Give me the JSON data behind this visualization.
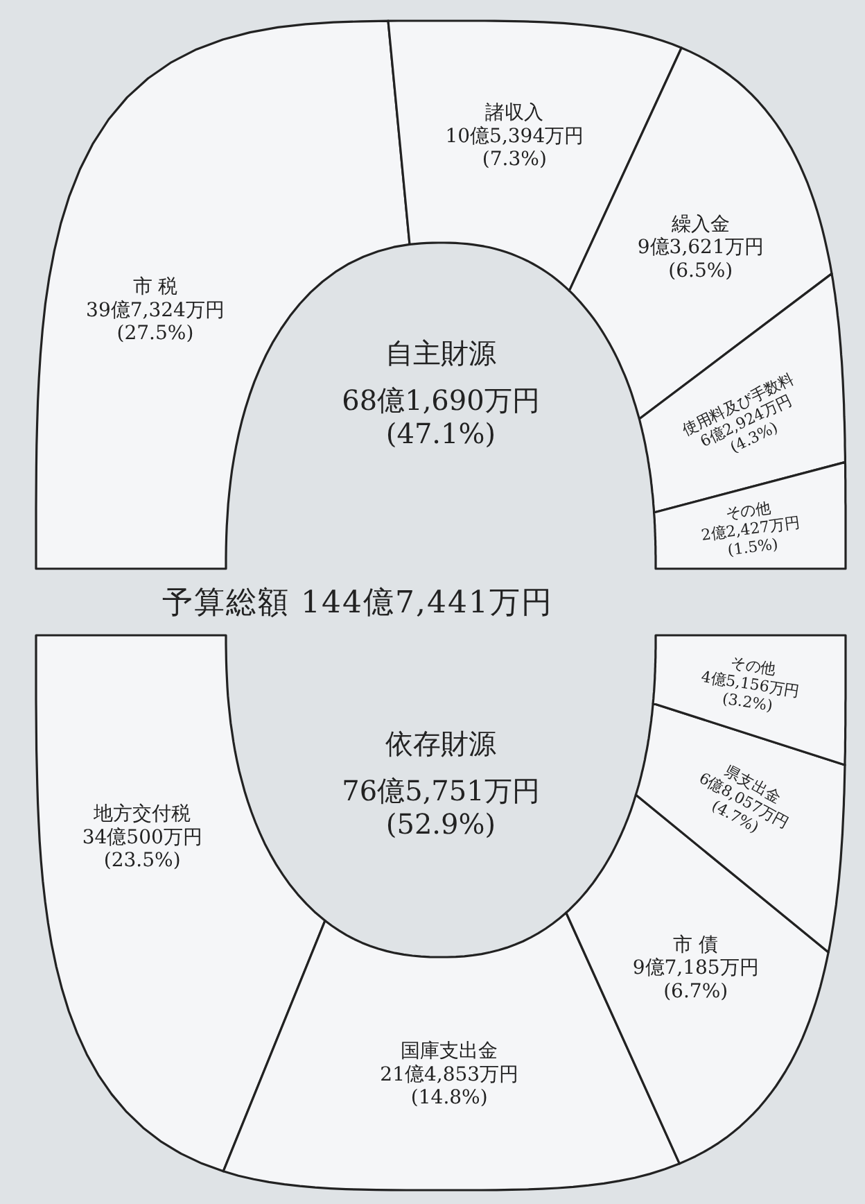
{
  "chart_data": [
    {
      "type": "other",
      "title": "自主財源",
      "subtitle": "68億1,690万円 (47.1%)",
      "color": "#f5f6f8",
      "annotations": [
        "予算総額 144億7,441万円"
      ],
      "categories": [
        "市 税",
        "諸収入",
        "繰入金",
        "使用料及び手数料",
        "その他"
      ],
      "values": [
        27.5,
        7.3,
        6.5,
        4.3,
        1.5
      ],
      "value_labels": [
        "39億7,324万円 (27.5%)",
        "10億5,394万円 (7.3%)",
        "9億3,621万円 (6.5%)",
        "6億2,924万円 (4.3%)",
        "2億2,427万円 (1.5%)"
      ]
    },
    {
      "type": "other",
      "title": "依存財源",
      "subtitle": "76億5,751万円 (52.9%)",
      "color": "#f5f6f8",
      "categories": [
        "地方交付税",
        "国庫支出金",
        "市 債",
        "県支出金",
        "その他"
      ],
      "values": [
        23.5,
        14.8,
        6.7,
        4.7,
        3.2
      ],
      "value_labels": [
        "34億500万円 (23.5%)",
        "21億4,853万円 (14.8%)",
        "9億7,185万円 (6.7%)",
        "6億8,057万円 (4.7%)",
        "4億5,156万円 (3.2%)"
      ]
    }
  ]
}
